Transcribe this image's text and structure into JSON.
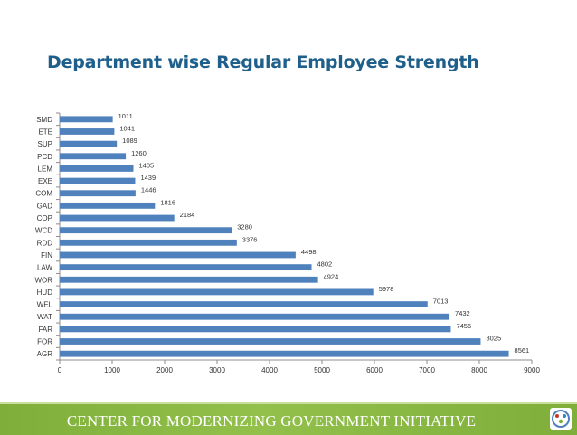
{
  "chart_data": {
    "type": "bar",
    "orientation": "horizontal",
    "title": "Department wise Regular Employee Strength",
    "categories": [
      "SMD",
      "ETE",
      "SUP",
      "PCD",
      "LEM",
      "EXE",
      "COM",
      "GAD",
      "COP",
      "WCD",
      "RDD",
      "FIN",
      "LAW",
      "WOR",
      "HUD",
      "WEL",
      "WAT",
      "FAR",
      "FOR",
      "AGR"
    ],
    "values": [
      1011,
      1041,
      1089,
      1260,
      1405,
      1439,
      1446,
      1816,
      2184,
      3280,
      3376,
      4498,
      4802,
      4924,
      5978,
      7013,
      7432,
      7456,
      8025,
      8561
    ],
    "xlim": [
      0,
      9000
    ],
    "xticks": [
      0,
      1000,
      2000,
      3000,
      4000,
      5000,
      6000,
      7000,
      8000,
      9000
    ],
    "bar_color": "#4f81bd",
    "data_labels": true,
    "legend": "none",
    "grid": false
  },
  "footer": {
    "text": "CENTER FOR MODERNIZING GOVERNMENT INITIATIVE",
    "background_color": "#8cba45",
    "logo_icon": "cmgi-logo-icon"
  }
}
